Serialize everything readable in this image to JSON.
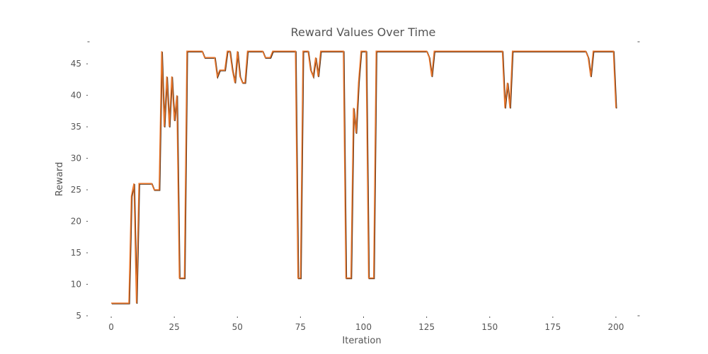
{
  "chart_data": {
    "type": "line",
    "title": "Reward Values Over Time",
    "xlabel": "Iteration",
    "ylabel": "Reward",
    "xlim": [
      -9,
      209
    ],
    "ylim": [
      5,
      48.5
    ],
    "xticks": [
      0,
      25,
      50,
      75,
      100,
      125,
      150,
      175,
      200
    ],
    "yticks": [
      5,
      10,
      15,
      20,
      25,
      30,
      35,
      40,
      45
    ],
    "grid": false,
    "legend": "none",
    "colors": {
      "line": "#e8762c",
      "line_shadow": "#4a2a14",
      "text": "#555555"
    },
    "series": [
      {
        "values": [
          7,
          7,
          7,
          7,
          7,
          7,
          7,
          7,
          24,
          26,
          7,
          26,
          26,
          26,
          26,
          26,
          26,
          25,
          25,
          25,
          47,
          35,
          43,
          35,
          43,
          36,
          40,
          11,
          11,
          11,
          47,
          47,
          47,
          47,
          47,
          47,
          47,
          46,
          46,
          46,
          46,
          46,
          43,
          44,
          44,
          44,
          47,
          47,
          44,
          42,
          47,
          43,
          42,
          42,
          47,
          47,
          47,
          47,
          47,
          47,
          47,
          46,
          46,
          46,
          47,
          47,
          47,
          47,
          47,
          47,
          47,
          47,
          47,
          47,
          11,
          11,
          47,
          47,
          47,
          44,
          43,
          46,
          43,
          47,
          47,
          47,
          47,
          47,
          47,
          47,
          47,
          47,
          47,
          11,
          11,
          11,
          38,
          34,
          42,
          47,
          47,
          47,
          11,
          11,
          11,
          47,
          47,
          47,
          47,
          47,
          47,
          47,
          47,
          47,
          47,
          47,
          47,
          47,
          47,
          47,
          47,
          47,
          47,
          47,
          47,
          47,
          46,
          43,
          47,
          47,
          47,
          47,
          47,
          47,
          47,
          47,
          47,
          47,
          47,
          47,
          47,
          47,
          47,
          47,
          47,
          47,
          47,
          47,
          47,
          47,
          47,
          47,
          47,
          47,
          47,
          47,
          38,
          42,
          38,
          47,
          47,
          47,
          47,
          47,
          47,
          47,
          47,
          47,
          47,
          47,
          47,
          47,
          47,
          47,
          47,
          47,
          47,
          47,
          47,
          47,
          47,
          47,
          47,
          47,
          47,
          47,
          47,
          47,
          47,
          46,
          43,
          47,
          47,
          47,
          47,
          47,
          47,
          47,
          47,
          47,
          38
        ]
      }
    ]
  }
}
